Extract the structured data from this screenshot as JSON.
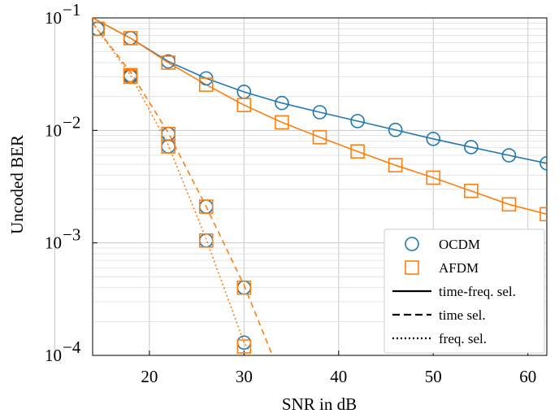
{
  "chart_data": {
    "type": "line",
    "xlabel": "SNR in dB",
    "ylabel": "Uncoded BER",
    "x_ticks": [
      "20",
      "30",
      "40",
      "50",
      "60"
    ],
    "y_ticks": [
      {
        "base": "10",
        "exp": "−1"
      },
      {
        "base": "10",
        "exp": "−2"
      },
      {
        "base": "10",
        "exp": "−3"
      },
      {
        "base": "10",
        "exp": "−4"
      }
    ],
    "xlim": [
      14,
      62
    ],
    "ylim": [
      0.0001,
      0.1
    ],
    "yscale": "log",
    "grid": true,
    "legend_position": "bottom-right",
    "colors": {
      "ocdm": "#1f77b4",
      "afdm": "#ff7f0e"
    },
    "legend": [
      {
        "label": "OCDM",
        "kind": "marker",
        "marker": "circle",
        "color": "#1f77b4"
      },
      {
        "label": "AFDM",
        "kind": "marker",
        "marker": "square",
        "color": "#ff7f0e"
      },
      {
        "label": "time-freq. sel.",
        "kind": "line",
        "dash": "solid",
        "color": "#000000"
      },
      {
        "label": "time sel.",
        "kind": "line",
        "dash": "dashed",
        "color": "#000000"
      },
      {
        "label": "freq. sel.",
        "kind": "line",
        "dash": "dotted",
        "color": "#000000"
      }
    ],
    "series": [
      {
        "waveform": "OCDM",
        "channel": "time-freq. sel.",
        "color": "#1f77b4",
        "dash": "solid",
        "marker": "circle",
        "points": [
          [
            14,
            0.1
          ],
          [
            18,
            0.066
          ],
          [
            22,
            0.041
          ],
          [
            26,
            0.029
          ],
          [
            30,
            0.022
          ],
          [
            34,
            0.0175
          ],
          [
            38,
            0.0145
          ],
          [
            42,
            0.0121
          ],
          [
            46,
            0.0101
          ],
          [
            50,
            0.0084
          ],
          [
            54,
            0.0071
          ],
          [
            58,
            0.006
          ],
          [
            62,
            0.0051
          ]
        ]
      },
      {
        "waveform": "AFDM",
        "channel": "time-freq. sel.",
        "color": "#ff7f0e",
        "dash": "solid",
        "marker": "square",
        "points": [
          [
            14,
            0.1
          ],
          [
            18,
            0.066
          ],
          [
            22,
            0.04
          ],
          [
            26,
            0.0255
          ],
          [
            30,
            0.0168
          ],
          [
            34,
            0.0118
          ],
          [
            38,
            0.0087
          ],
          [
            42,
            0.0065
          ],
          [
            46,
            0.0049
          ],
          [
            50,
            0.0038
          ],
          [
            54,
            0.0029
          ],
          [
            58,
            0.0022
          ],
          [
            62,
            0.0018
          ]
        ]
      },
      {
        "waveform": "OCDM",
        "channel": "time sel.",
        "color": "#1f77b4",
        "dash": "dashed",
        "marker": "circle",
        "points": [
          [
            14,
            0.08
          ],
          [
            18,
            0.031
          ],
          [
            22,
            0.0093
          ],
          [
            26,
            0.0021
          ],
          [
            30,
            0.0004
          ]
        ]
      },
      {
        "waveform": "AFDM",
        "channel": "time sel.",
        "color": "#ff7f0e",
        "dash": "dashed",
        "marker": "square",
        "points": [
          [
            14,
            0.08
          ],
          [
            18,
            0.031
          ],
          [
            22,
            0.0093
          ],
          [
            26,
            0.0021
          ],
          [
            30,
            0.0004
          ]
        ]
      },
      {
        "waveform": "OCDM",
        "channel": "freq. sel.",
        "color": "#1f77b4",
        "dash": "dotted",
        "marker": "circle",
        "points": [
          [
            14,
            0.08
          ],
          [
            18,
            0.03
          ],
          [
            22,
            0.0072
          ],
          [
            26,
            0.00105
          ],
          [
            30,
            0.00013
          ]
        ]
      },
      {
        "waveform": "AFDM",
        "channel": "freq. sel.",
        "color": "#ff7f0e",
        "dash": "dotted",
        "marker": "square",
        "points": [
          [
            14,
            0.08
          ],
          [
            18,
            0.03
          ],
          [
            22,
            0.0072
          ],
          [
            26,
            0.00105
          ],
          [
            30,
            0.00012
          ]
        ]
      }
    ],
    "fit_lines": [
      {
        "channel": "time sel.",
        "color": "#ff7f0e",
        "dash": "dashed",
        "points": [
          [
            14,
            0.09
          ],
          [
            18,
            0.033
          ],
          [
            22,
            0.0095
          ],
          [
            26,
            0.0021
          ],
          [
            30,
            0.00042
          ],
          [
            33,
            0.0001
          ]
        ]
      },
      {
        "channel": "freq. sel.",
        "color": "#ff7f0e",
        "dash": "dotted",
        "points": [
          [
            14,
            0.09
          ],
          [
            18,
            0.031
          ],
          [
            22,
            0.0074
          ],
          [
            26,
            0.00108
          ],
          [
            30,
            0.00013
          ],
          [
            30.9,
            0.0001
          ]
        ]
      }
    ]
  }
}
